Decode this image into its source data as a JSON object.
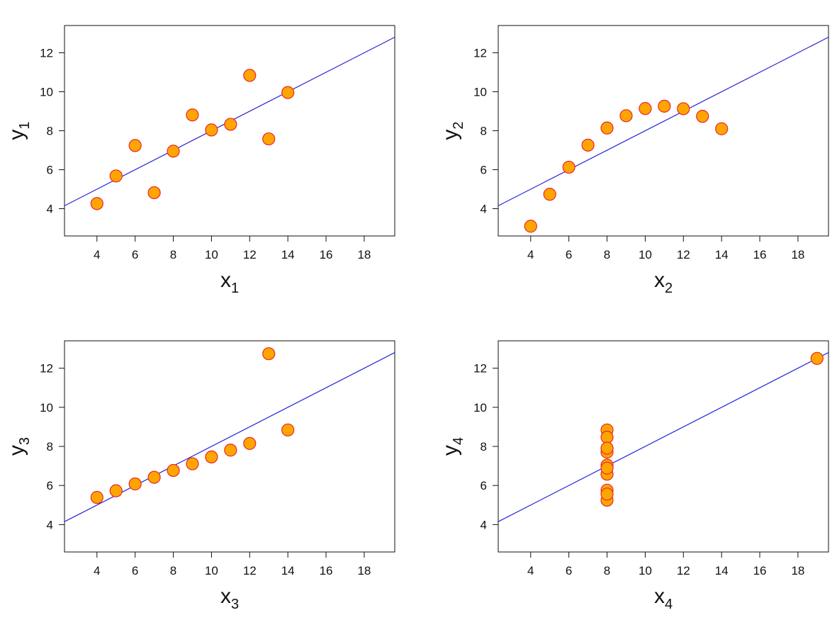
{
  "chart_data": [
    {
      "type": "scatter",
      "xlabel": "x",
      "xlabel_sub": "1",
      "ylabel": "y",
      "ylabel_sub": "1",
      "xlim": [
        2.3,
        19.6
      ],
      "ylim": [
        2.6,
        13.4
      ],
      "x_ticks": [
        4,
        6,
        8,
        10,
        12,
        14,
        16,
        18
      ],
      "y_ticks": [
        4,
        6,
        8,
        10,
        12
      ],
      "grid": false,
      "points": {
        "x": [
          10,
          8,
          13,
          9,
          11,
          14,
          6,
          4,
          12,
          7,
          5
        ],
        "y": [
          8.04,
          6.95,
          7.58,
          8.81,
          8.33,
          9.96,
          7.24,
          4.26,
          10.84,
          4.82,
          5.68
        ]
      },
      "fit_line": {
        "intercept": 3.0,
        "slope": 0.5
      }
    },
    {
      "type": "scatter",
      "xlabel": "x",
      "xlabel_sub": "2",
      "ylabel": "y",
      "ylabel_sub": "2",
      "xlim": [
        2.3,
        19.6
      ],
      "ylim": [
        2.6,
        13.4
      ],
      "x_ticks": [
        4,
        6,
        8,
        10,
        12,
        14,
        16,
        18
      ],
      "y_ticks": [
        4,
        6,
        8,
        10,
        12
      ],
      "grid": false,
      "points": {
        "x": [
          10,
          8,
          13,
          9,
          11,
          14,
          6,
          4,
          12,
          7,
          5
        ],
        "y": [
          9.14,
          8.14,
          8.74,
          8.77,
          9.26,
          8.1,
          6.13,
          3.1,
          9.13,
          7.26,
          4.74
        ]
      },
      "fit_line": {
        "intercept": 3.0,
        "slope": 0.5
      }
    },
    {
      "type": "scatter",
      "xlabel": "x",
      "xlabel_sub": "3",
      "ylabel": "y",
      "ylabel_sub": "3",
      "xlim": [
        2.3,
        19.6
      ],
      "ylim": [
        2.6,
        13.4
      ],
      "x_ticks": [
        4,
        6,
        8,
        10,
        12,
        14,
        16,
        18
      ],
      "y_ticks": [
        4,
        6,
        8,
        10,
        12
      ],
      "grid": false,
      "points": {
        "x": [
          10,
          8,
          13,
          9,
          11,
          14,
          6,
          4,
          12,
          7,
          5
        ],
        "y": [
          7.46,
          6.77,
          12.74,
          7.11,
          7.81,
          8.84,
          6.08,
          5.39,
          8.15,
          6.42,
          5.73
        ]
      },
      "fit_line": {
        "intercept": 3.0,
        "slope": 0.5
      }
    },
    {
      "type": "scatter",
      "xlabel": "x",
      "xlabel_sub": "4",
      "ylabel": "y",
      "ylabel_sub": "4",
      "xlim": [
        2.3,
        19.6
      ],
      "ylim": [
        2.6,
        13.4
      ],
      "x_ticks": [
        4,
        6,
        8,
        10,
        12,
        14,
        16,
        18
      ],
      "y_ticks": [
        4,
        6,
        8,
        10,
        12
      ],
      "grid": false,
      "points": {
        "x": [
          8,
          8,
          8,
          8,
          8,
          8,
          8,
          19,
          8,
          8,
          8
        ],
        "y": [
          6.58,
          5.76,
          7.71,
          8.84,
          8.47,
          7.04,
          5.25,
          12.5,
          5.56,
          7.91,
          6.89
        ]
      },
      "fit_line": {
        "intercept": 3.0,
        "slope": 0.5
      }
    }
  ],
  "colors": {
    "point_fill": "#ffa500",
    "point_stroke": "#e8262b",
    "fit_line": "#2424d6",
    "axis": "#111111"
  }
}
